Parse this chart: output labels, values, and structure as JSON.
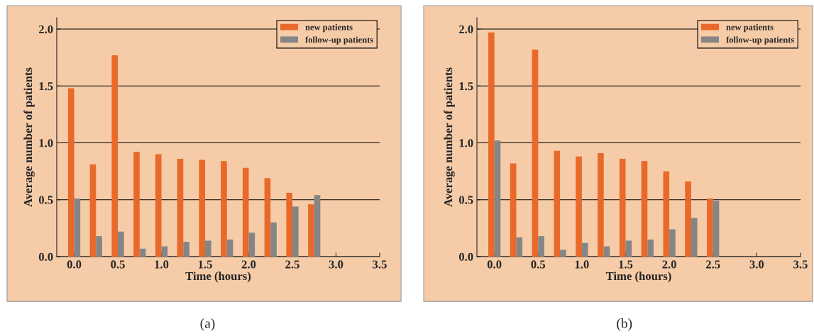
{
  "chart_data": [
    {
      "type": "bar",
      "xlabel": "Time (hours)",
      "ylabel": "Average number of patients",
      "x": [
        0.0,
        0.25,
        0.5,
        0.75,
        1.0,
        1.25,
        1.5,
        1.75,
        2.0,
        2.25,
        2.5,
        2.75
      ],
      "series": [
        {
          "name": "new patients",
          "color": "#e8692a",
          "values": [
            1.48,
            0.81,
            1.77,
            0.92,
            0.9,
            0.86,
            0.85,
            0.84,
            0.78,
            0.69,
            0.56,
            0.46
          ]
        },
        {
          "name": "follow-up patients",
          "color": "#858585",
          "values": [
            0.51,
            0.18,
            0.22,
            0.07,
            0.09,
            0.13,
            0.14,
            0.15,
            0.21,
            0.3,
            0.44,
            0.54
          ]
        }
      ],
      "xlim": [
        -0.2,
        3.5
      ],
      "xticks": [
        {
          "value": 0,
          "label": "0.0"
        },
        0.5,
        {
          "value": 1,
          "label": "1.0"
        },
        1.5,
        {
          "value": 2,
          "label": "2.0"
        },
        2.5,
        {
          "value": 3,
          "label": "3.0"
        },
        3.5
      ],
      "ylim": [
        0,
        2.1
      ],
      "yticks": [
        {
          "value": 0,
          "label": "0.0"
        },
        {
          "value": 0.5,
          "label": "0.5"
        },
        {
          "value": 1,
          "label": "1.0"
        },
        {
          "value": 1.5,
          "label": "1.5"
        },
        {
          "value": 2,
          "label": "2.0"
        }
      ],
      "grid": "y",
      "legend": "top right",
      "annotations": [
        "(a)"
      ]
    },
    {
      "type": "bar",
      "xlabel": "Time (hours)",
      "ylabel": "Average number of patients",
      "x": [
        0.0,
        0.25,
        0.5,
        0.75,
        1.0,
        1.25,
        1.5,
        1.75,
        2.0,
        2.25,
        2.5
      ],
      "series": [
        {
          "name": "new patients",
          "color": "#e8692a",
          "values": [
            1.97,
            0.82,
            1.82,
            0.93,
            0.88,
            0.91,
            0.86,
            0.84,
            0.75,
            0.66,
            0.51
          ]
        },
        {
          "name": "follow-up patients",
          "color": "#858585",
          "values": [
            1.02,
            0.17,
            0.18,
            0.06,
            0.12,
            0.09,
            0.14,
            0.15,
            0.24,
            0.34,
            0.49
          ]
        }
      ],
      "xlim": [
        -0.2,
        3.5
      ],
      "xticks": [
        {
          "value": 0,
          "label": "0.0"
        },
        0.5,
        {
          "value": 1,
          "label": "1.0"
        },
        1.5,
        {
          "value": 2,
          "label": "2.0"
        },
        2.5,
        {
          "value": 3,
          "label": "3.0"
        },
        3.5
      ],
      "ylim": [
        0,
        2.1
      ],
      "yticks": [
        {
          "value": 0,
          "label": "0.0"
        },
        {
          "value": 0.5,
          "label": "0.5"
        },
        {
          "value": 1,
          "label": "1.0"
        },
        {
          "value": 1.5,
          "label": "1.5"
        },
        {
          "value": 2,
          "label": "2.0"
        }
      ],
      "grid": "y",
      "legend": "top right",
      "annotations": [
        "(b)"
      ]
    }
  ]
}
